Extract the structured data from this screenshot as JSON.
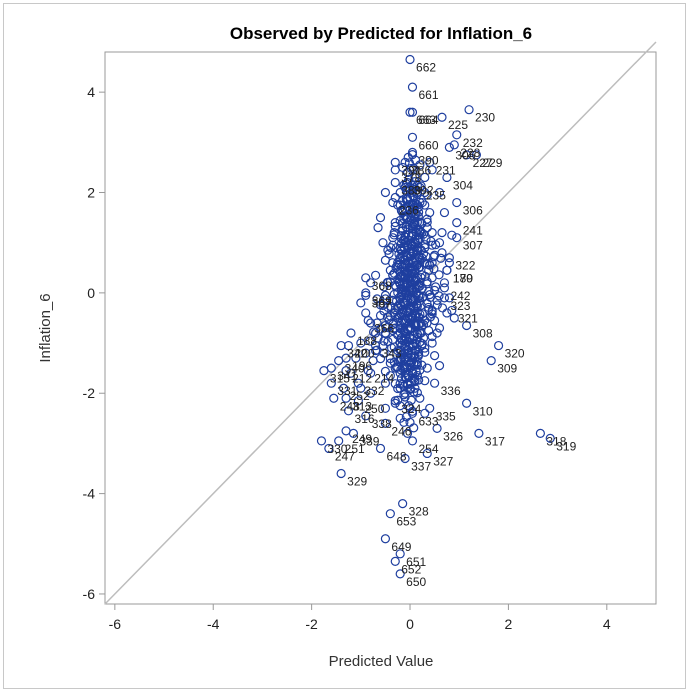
{
  "chart_data": {
    "type": "scatter",
    "title": "Observed by Predicted for Inflation_6",
    "xlabel": "Predicted Value",
    "ylabel": "Inflation_6",
    "xlim": [
      -6.2,
      5
    ],
    "ylim": [
      -6.2,
      4.8
    ],
    "xticks": [
      -6,
      -4,
      -2,
      0,
      2,
      4
    ],
    "yticks": [
      -6,
      -4,
      -2,
      0,
      2,
      4
    ],
    "colors": {
      "marker": "#1f3f9f",
      "reference_line": "#bdbdbd",
      "axis": "#999999"
    },
    "reference_line": {
      "from": [
        -6.2,
        -6.2
      ],
      "to": [
        5,
        5
      ]
    },
    "labeled_points": [
      {
        "label": "662",
        "x": 0.0,
        "y": 4.65
      },
      {
        "label": "661",
        "x": 0.05,
        "y": 4.1
      },
      {
        "label": "663",
        "x": 0.0,
        "y": 3.6
      },
      {
        "label": "664",
        "x": 0.05,
        "y": 3.6
      },
      {
        "label": "230",
        "x": 1.2,
        "y": 3.65
      },
      {
        "label": "225",
        "x": 0.65,
        "y": 3.5
      },
      {
        "label": "660",
        "x": 0.05,
        "y": 3.1
      },
      {
        "label": "232",
        "x": 0.95,
        "y": 3.15
      },
      {
        "label": "228",
        "x": 0.9,
        "y": 2.95
      },
      {
        "label": "390",
        "x": 0.05,
        "y": 2.8
      },
      {
        "label": "229",
        "x": 1.35,
        "y": 2.75
      },
      {
        "label": "391",
        "x": -0.3,
        "y": 2.6
      },
      {
        "label": "378",
        "x": -0.3,
        "y": 2.45
      },
      {
        "label": "304",
        "x": 0.75,
        "y": 2.3
      },
      {
        "label": "389",
        "x": -0.3,
        "y": 2.2
      },
      {
        "label": "306",
        "x": 0.95,
        "y": 1.8
      },
      {
        "label": "236",
        "x": -0.35,
        "y": 1.8
      },
      {
        "label": "241",
        "x": 0.95,
        "y": 1.4
      },
      {
        "label": "307",
        "x": 0.95,
        "y": 1.1
      },
      {
        "label": "322",
        "x": 0.8,
        "y": 0.7
      },
      {
        "label": "180",
        "x": 0.75,
        "y": 0.45
      },
      {
        "label": "368",
        "x": -0.9,
        "y": 0.3
      },
      {
        "label": "242",
        "x": 0.7,
        "y": 0.1
      },
      {
        "label": "367",
        "x": -0.9,
        "y": -0.05
      },
      {
        "label": "323",
        "x": 0.7,
        "y": -0.1
      },
      {
        "label": "321",
        "x": 0.85,
        "y": -0.35
      },
      {
        "label": "366",
        "x": -0.85,
        "y": -0.55
      },
      {
        "label": "320",
        "x": 1.8,
        "y": -1.05
      },
      {
        "label": "308",
        "x": 1.15,
        "y": -0.65
      },
      {
        "label": "342",
        "x": -1.4,
        "y": -1.05
      },
      {
        "label": "340",
        "x": -1.45,
        "y": -1.35
      },
      {
        "label": "309",
        "x": 1.65,
        "y": -1.35
      },
      {
        "label": "315",
        "x": -1.75,
        "y": -1.55
      },
      {
        "label": "331",
        "x": -1.6,
        "y": -1.8
      },
      {
        "label": "336",
        "x": 0.5,
        "y": -1.8
      },
      {
        "label": "310",
        "x": 1.15,
        "y": -2.2
      },
      {
        "label": "248",
        "x": -1.55,
        "y": -2.1
      },
      {
        "label": "316",
        "x": -1.25,
        "y": -2.35
      },
      {
        "label": "338",
        "x": -0.9,
        "y": -2.45
      },
      {
        "label": "335",
        "x": 0.4,
        "y": -2.3
      },
      {
        "label": "317",
        "x": 1.4,
        "y": -2.8
      },
      {
        "label": "318",
        "x": 2.65,
        "y": -2.8
      },
      {
        "label": "319",
        "x": 2.85,
        "y": -2.9
      },
      {
        "label": "249",
        "x": -1.3,
        "y": -2.75
      },
      {
        "label": "339",
        "x": -1.15,
        "y": -2.8
      },
      {
        "label": "326",
        "x": 0.55,
        "y": -2.7
      },
      {
        "label": "246",
        "x": -0.5,
        "y": -2.6
      },
      {
        "label": "254",
        "x": 0.05,
        "y": -2.95
      },
      {
        "label": "330",
        "x": -1.8,
        "y": -2.95
      },
      {
        "label": "251",
        "x": -1.45,
        "y": -2.95
      },
      {
        "label": "247",
        "x": -1.65,
        "y": -3.1
      },
      {
        "label": "648",
        "x": -0.6,
        "y": -3.1
      },
      {
        "label": "329",
        "x": -1.4,
        "y": -3.6
      },
      {
        "label": "337",
        "x": -0.1,
        "y": -3.3
      },
      {
        "label": "327",
        "x": 0.35,
        "y": -3.2
      },
      {
        "label": "328",
        "x": -0.15,
        "y": -4.2
      },
      {
        "label": "653",
        "x": -0.4,
        "y": -4.4
      },
      {
        "label": "649",
        "x": -0.5,
        "y": -4.9
      },
      {
        "label": "651",
        "x": -0.2,
        "y": -5.2
      },
      {
        "label": "652",
        "x": -0.3,
        "y": -5.35
      },
      {
        "label": "650",
        "x": -0.2,
        "y": -5.6
      }
    ],
    "annotations": [
      {
        "label": "305",
        "x": 0.8,
        "y": 2.9
      },
      {
        "label": "227",
        "x": 1.15,
        "y": 2.75
      },
      {
        "label": "386",
        "x": -0.1,
        "y": 2.6
      },
      {
        "label": "231",
        "x": 0.4,
        "y": 2.6
      },
      {
        "label": "392",
        "x": -0.05,
        "y": 2.2
      },
      {
        "label": "235",
        "x": 0.2,
        "y": 2.1
      },
      {
        "label": "179",
        "x": 0.75,
        "y": 0.45
      },
      {
        "label": "369",
        "x": -0.9,
        "y": 0.0
      },
      {
        "label": "188",
        "x": -1.2,
        "y": -0.8
      },
      {
        "label": "200",
        "x": -1.25,
        "y": -1.05
      },
      {
        "label": "343",
        "x": -0.7,
        "y": -1.05
      },
      {
        "label": "196",
        "x": -1.3,
        "y": -1.3
      },
      {
        "label": "341",
        "x": -1.6,
        "y": -1.5
      },
      {
        "label": "212",
        "x": -1.3,
        "y": -1.55
      },
      {
        "label": "214",
        "x": -0.85,
        "y": -1.55
      },
      {
        "label": "332",
        "x": -1.05,
        "y": -1.8
      },
      {
        "label": "252",
        "x": -1.35,
        "y": -1.9
      },
      {
        "label": "313",
        "x": -1.3,
        "y": -2.1
      },
      {
        "label": "250",
        "x": -1.05,
        "y": -2.15
      },
      {
        "label": "324",
        "x": -0.3,
        "y": -2.15
      },
      {
        "label": "633",
        "x": 0.05,
        "y": -2.4
      }
    ],
    "cluster_points": [
      [
        0.1,
        1.5
      ],
      [
        0.2,
        1.2
      ],
      [
        -0.1,
        1.0
      ],
      [
        0.15,
        0.9
      ],
      [
        0.05,
        0.8
      ],
      [
        -0.2,
        0.7
      ],
      [
        0.3,
        0.6
      ],
      [
        0.0,
        0.5
      ],
      [
        0.1,
        0.4
      ],
      [
        -0.1,
        0.3
      ],
      [
        0.2,
        0.2
      ],
      [
        0.0,
        0.1
      ],
      [
        -0.15,
        0.0
      ],
      [
        0.25,
        -0.1
      ],
      [
        0.05,
        -0.2
      ],
      [
        -0.25,
        -0.3
      ],
      [
        0.15,
        -0.4
      ],
      [
        -0.05,
        -0.5
      ],
      [
        0.1,
        -0.6
      ],
      [
        -0.3,
        -0.7
      ],
      [
        0.2,
        -0.8
      ],
      [
        0.0,
        -0.9
      ],
      [
        -0.2,
        -1.0
      ],
      [
        0.3,
        -1.1
      ],
      [
        -0.1,
        -1.2
      ],
      [
        0.1,
        -1.3
      ],
      [
        -0.4,
        -1.4
      ],
      [
        0.35,
        -1.5
      ],
      [
        -0.2,
        -1.6
      ],
      [
        0.05,
        -1.7
      ],
      [
        0.4,
        1.6
      ],
      [
        -0.3,
        1.4
      ],
      [
        0.35,
        1.3
      ],
      [
        -0.35,
        1.1
      ],
      [
        0.45,
        0.95
      ],
      [
        -0.45,
        0.85
      ],
      [
        0.5,
        0.75
      ],
      [
        -0.5,
        0.65
      ],
      [
        0.4,
        0.55
      ],
      [
        -0.4,
        0.45
      ],
      [
        0.45,
        0.3
      ],
      [
        -0.45,
        0.2
      ],
      [
        0.5,
        0.05
      ],
      [
        -0.5,
        -0.05
      ],
      [
        0.55,
        -0.15
      ],
      [
        -0.55,
        -0.25
      ],
      [
        0.45,
        -0.35
      ],
      [
        -0.6,
        -0.45
      ],
      [
        0.5,
        -0.55
      ],
      [
        -0.5,
        -0.65
      ],
      [
        0.55,
        -0.8
      ],
      [
        -0.65,
        -0.9
      ],
      [
        0.45,
        -1.0
      ],
      [
        -0.7,
        -1.15
      ],
      [
        0.5,
        -1.25
      ],
      [
        -0.75,
        -1.35
      ],
      [
        0.6,
        -1.45
      ],
      [
        -0.8,
        -1.6
      ],
      [
        0.3,
        -1.75
      ],
      [
        -0.5,
        -1.8
      ],
      [
        0.0,
        1.9
      ],
      [
        0.15,
        2.0
      ],
      [
        -0.1,
        2.1
      ],
      [
        0.25,
        1.8
      ],
      [
        -0.2,
        1.75
      ],
      [
        0.05,
        1.65
      ],
      [
        0.35,
        1.95
      ],
      [
        -0.3,
        1.9
      ],
      [
        0.1,
        2.3
      ],
      [
        -0.05,
        2.4
      ],
      [
        0.3,
        2.3
      ],
      [
        0.45,
        2.45
      ],
      [
        0.2,
        2.55
      ],
      [
        -0.15,
        2.5
      ],
      [
        0.6,
        2.0
      ],
      [
        -0.5,
        2.0
      ],
      [
        0.7,
        1.6
      ],
      [
        -0.6,
        1.5
      ],
      [
        0.65,
        1.2
      ],
      [
        -0.65,
        1.3
      ],
      [
        0.1,
        -1.9
      ],
      [
        -0.1,
        -2.0
      ],
      [
        0.2,
        -2.1
      ],
      [
        -0.3,
        -2.2
      ],
      [
        0.0,
        -2.3
      ],
      [
        -0.5,
        -2.3
      ],
      [
        0.3,
        -2.4
      ],
      [
        -0.2,
        -2.5
      ],
      [
        -0.8,
        -2.0
      ],
      [
        -1.0,
        -1.9
      ],
      [
        -0.9,
        -1.2
      ],
      [
        -1.0,
        -1.0
      ],
      [
        -1.1,
        -1.3
      ],
      [
        -1.2,
        -1.6
      ],
      [
        -0.7,
        -0.8
      ],
      [
        -0.8,
        -0.6
      ],
      [
        -0.9,
        -0.4
      ],
      [
        -1.0,
        -0.2
      ],
      [
        -0.8,
        0.2
      ],
      [
        -0.7,
        0.35
      ],
      [
        0.7,
        0.2
      ],
      [
        0.8,
        -0.1
      ],
      [
        0.75,
        -0.4
      ],
      [
        0.6,
        -0.7
      ],
      [
        0.9,
        -0.5
      ],
      [
        0.65,
        0.8
      ],
      [
        0.8,
        0.6
      ],
      [
        0.6,
        1.0
      ],
      [
        0.85,
        1.15
      ],
      [
        0.3,
        2.0
      ],
      [
        -0.35,
        0.95
      ],
      [
        -0.55,
        1.0
      ],
      [
        -0.25,
        0.55
      ],
      [
        -0.35,
        0.35
      ],
      [
        -0.3,
        0.15
      ],
      [
        -0.35,
        -0.15
      ],
      [
        -0.3,
        -0.45
      ],
      [
        -0.35,
        -0.75
      ],
      [
        -0.2,
        -1.3
      ],
      [
        -0.3,
        -1.5
      ]
    ]
  }
}
